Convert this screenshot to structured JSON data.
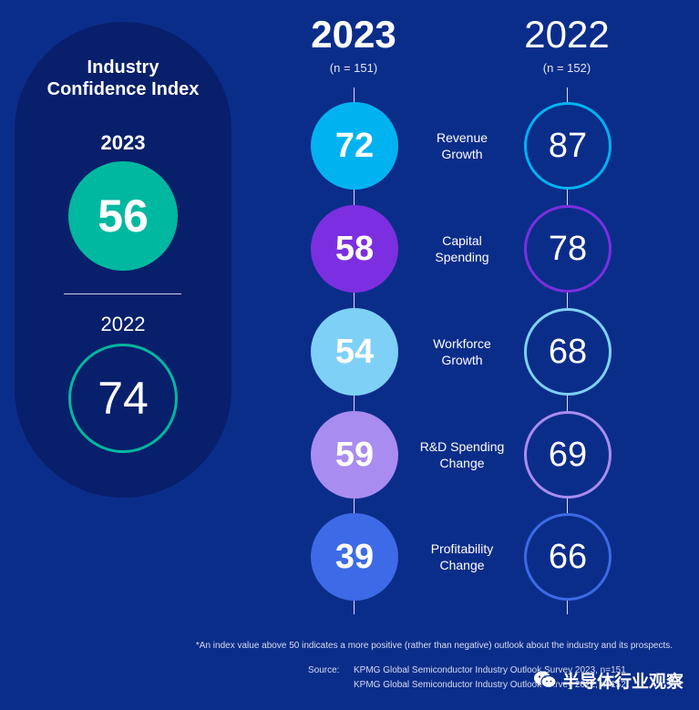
{
  "index_panel": {
    "title_line1": "Industry",
    "title_line2": "Confidence Index",
    "year_2023": "2023",
    "value_2023": "56",
    "year_2022": "2022",
    "value_2022": "74"
  },
  "columns": {
    "year_2023": "2023",
    "n_2023": "(n = 151)",
    "year_2022": "2022",
    "n_2022": "(n = 152)"
  },
  "chart_data": {
    "type": "table",
    "metrics": [
      {
        "label_line1": "Revenue",
        "label_line2": "Growth",
        "v2023": 72,
        "v2022": 87,
        "color": "#00b3f0"
      },
      {
        "label_line1": "Capital",
        "label_line2": "Spending",
        "v2023": 58,
        "v2022": 78,
        "color": "#7b2fe0"
      },
      {
        "label_line1": "Workforce",
        "label_line2": "Growth",
        "v2023": 54,
        "v2022": 68,
        "color": "#7fd0f7"
      },
      {
        "label_line1": "R&D Spending",
        "label_line2": "Change",
        "v2023": 59,
        "v2022": 69,
        "color": "#a98cf0"
      },
      {
        "label_line1": "Profitability",
        "label_line2": "Change",
        "v2023": 39,
        "v2022": 66,
        "color": "#3d6ae6"
      }
    ],
    "index": {
      "v2023": 56,
      "v2022": 74,
      "color": "#00b8a0"
    }
  },
  "footnote": "*An index value above 50 indicates a more positive (rather than negative) outlook about the industry and its prospects.",
  "source": {
    "label": "Source:",
    "line1": "KPMG Global Semiconductor Industry Outlook Survey 2023, n=151",
    "line2": "KPMG Global Semiconductor Industry Outlook Survey 2022, n=152"
  },
  "watermark": {
    "text": "半导体行业观察",
    "icon": "wechat-icon"
  }
}
